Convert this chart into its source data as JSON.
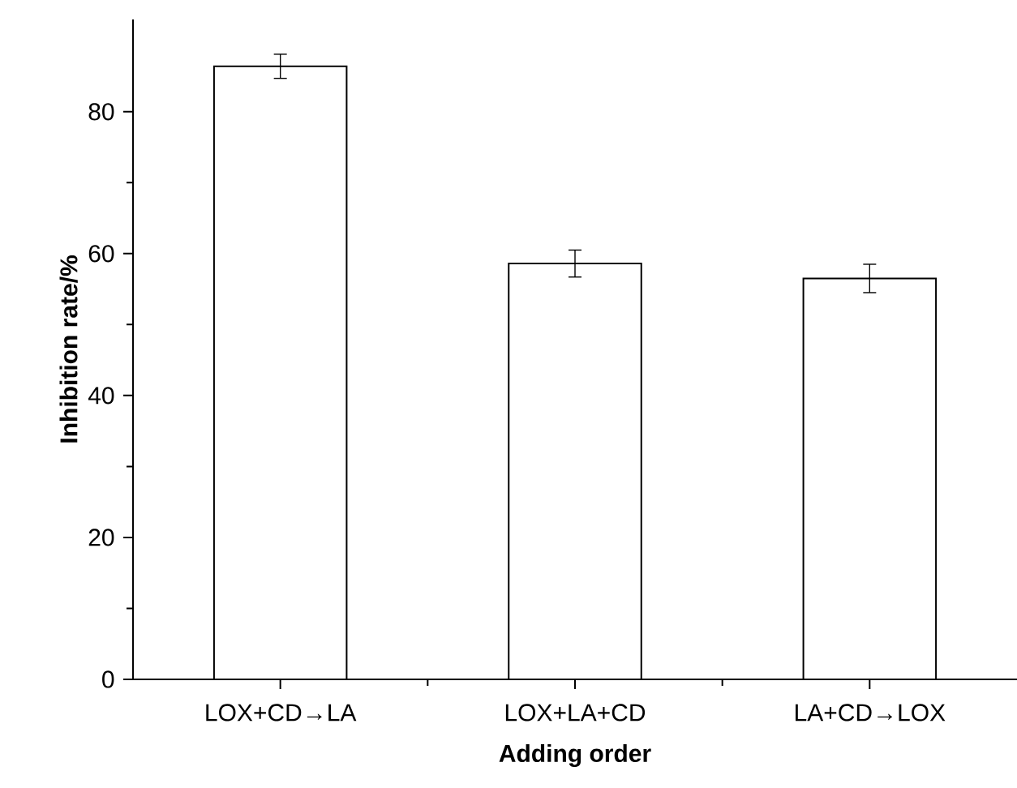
{
  "chart_data": {
    "type": "bar",
    "xlabel": "Adding order",
    "ylabel": "Inhibition rate/%",
    "categories": [
      "LOX+CD→LA",
      "LOX+LA+CD",
      "LA+CD→LOX"
    ],
    "values": [
      86.4,
      58.6,
      56.5
    ],
    "errors": [
      1.7,
      1.9,
      2.0
    ],
    "color": "#000000",
    "ylim": [
      0,
      93
    ],
    "yticks": [
      0,
      20,
      40,
      60,
      80
    ],
    "grid": false
  }
}
